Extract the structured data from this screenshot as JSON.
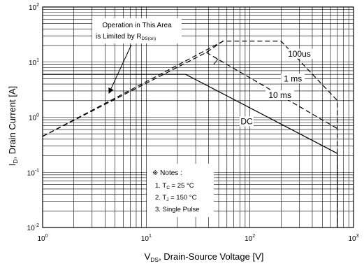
{
  "chart_data": {
    "type": "line",
    "title": "",
    "xlabel": {
      "main": "V",
      "sub": "DS",
      "rest": ", Drain-Source Voltage [V]"
    },
    "ylabel": {
      "main": "I",
      "sub": "D",
      "rest": ", Drain Current [A]"
    },
    "x_scale": "log",
    "y_scale": "log",
    "xlim": [
      1,
      1000
    ],
    "ylim": [
      0.01,
      100
    ],
    "grid": true,
    "x_ticks": [
      {
        "value": 1,
        "base": "10",
        "exp": "0"
      },
      {
        "value": 10,
        "base": "10",
        "exp": "1"
      },
      {
        "value": 100,
        "base": "10",
        "exp": "2"
      },
      {
        "value": 1000,
        "base": "10",
        "exp": "3"
      }
    ],
    "y_ticks": [
      {
        "value": 100,
        "base": "10",
        "exp": "2"
      },
      {
        "value": 10,
        "base": "10",
        "exp": "1"
      },
      {
        "value": 1,
        "base": "10",
        "exp": "0"
      },
      {
        "value": 0.1,
        "base": "10",
        "exp": "-1"
      },
      {
        "value": 0.01,
        "base": "10",
        "exp": "-2"
      }
    ],
    "series": [
      {
        "name": "100us",
        "style": "dashed",
        "x": [
          1,
          55,
          200,
          700,
          700
        ],
        "y": [
          0.45,
          24,
          24,
          2.0,
          0.01
        ]
      },
      {
        "name": "1 ms",
        "style": "dashed",
        "x": [
          38,
          700
        ],
        "y": [
          15,
          0.62
        ]
      },
      {
        "name": "10 ms",
        "style": "dashed",
        "x": [
          1,
          38,
          55
        ],
        "y": [
          0.45,
          15,
          24
        ]
      },
      {
        "name": "DC",
        "style": "solid",
        "x": [
          1,
          24,
          700,
          700
        ],
        "y": [
          6,
          6,
          0.22,
          0.01
        ]
      }
    ],
    "series_labels": [
      {
        "text": "100us",
        "x": 300,
        "y": 13
      },
      {
        "text": "1 ms",
        "x": 260,
        "y": 4.6
      },
      {
        "text": "10 ms",
        "x": 195,
        "y": 2.3
      },
      {
        "text": "DC",
        "x": 93,
        "y": 0.77
      }
    ],
    "annotations": {
      "operation": {
        "line1": "Operation in This Area",
        "line2_main": "is Limited by R",
        "line2_sub": "DS(on)"
      },
      "notes": {
        "title": "※ Notes :",
        "n1_pre": "1. T",
        "n1_sub": "C",
        "n1_post": " = 25 °C",
        "n2_pre": "2. T",
        "n2_sub": "J",
        "n2_post": " = 150 °C",
        "n3": "3. Single Pulse"
      }
    }
  }
}
